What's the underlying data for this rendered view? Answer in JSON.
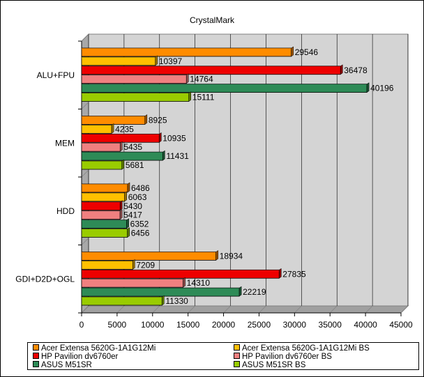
{
  "chart_data": {
    "type": "bar",
    "orientation": "horizontal",
    "title": "CrystalMark",
    "xlabel": "",
    "ylabel": "",
    "xlim": [
      0,
      45000
    ],
    "x_ticks": [
      0,
      5000,
      10000,
      15000,
      20000,
      25000,
      30000,
      35000,
      40000,
      45000
    ],
    "grid": true,
    "legend_position": "bottom",
    "categories": [
      "ALU+FPU",
      "MEM",
      "HDD",
      "GDI+D2D+OGL"
    ],
    "series": [
      {
        "name": "Acer Extensa 5620G-1A1G12Mi",
        "color": "#ff8c00",
        "values": [
          29546,
          8925,
          6486,
          18934
        ]
      },
      {
        "name": "Acer Extensa 5620G-1A1G12Mi BS",
        "color": "#ffc000",
        "values": [
          10397,
          4235,
          6063,
          7209
        ]
      },
      {
        "name": "HP Pavilion dv6760er",
        "color": "#ee0000",
        "values": [
          36478,
          10935,
          5430,
          27835
        ]
      },
      {
        "name": "HP Pavilion dv6760er BS",
        "color": "#f08080",
        "values": [
          14764,
          5435,
          5417,
          14310
        ]
      },
      {
        "name": "ASUS M51SR",
        "color": "#2e8b57",
        "values": [
          40196,
          11431,
          6352,
          22219
        ]
      },
      {
        "name": "ASUS M51SR BS",
        "color": "#99cc00",
        "values": [
          15111,
          5681,
          6456,
          11330
        ]
      }
    ]
  }
}
